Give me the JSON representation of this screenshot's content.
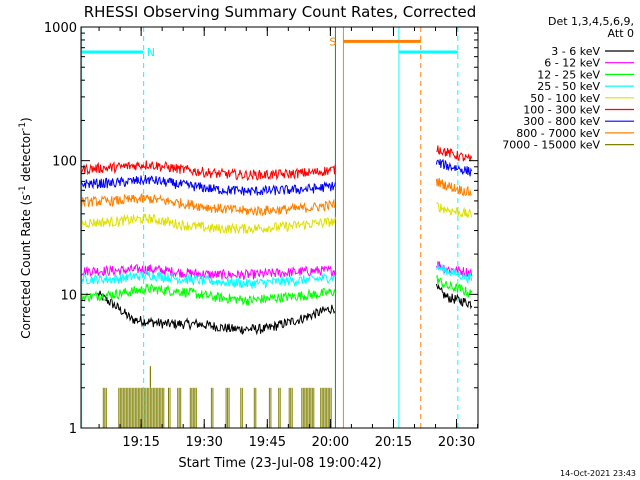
{
  "chart_data": {
    "type": "line",
    "title": "RHESSI Observing Summary Count Rates, Corrected",
    "xlabel": "Start Time (23-Jul-08 19:00:42)",
    "ylabel_parts": [
      "Corrected Count Rate (s",
      "-1",
      " detector",
      "-1",
      ")"
    ],
    "yscale": "log",
    "ylim": [
      1,
      1000
    ],
    "xlim_minutes": [
      0,
      94.4
    ],
    "y_ticks": [
      {
        "value": 1,
        "label": "1"
      },
      {
        "value": 10,
        "label": "10"
      },
      {
        "value": 100,
        "label": "100"
      },
      {
        "value": 1000,
        "label": "1000"
      }
    ],
    "x_ticks": [
      {
        "minute": 14.3,
        "label": "19:15"
      },
      {
        "minute": 29.3,
        "label": "19:30"
      },
      {
        "minute": 44.3,
        "label": "19:45"
      },
      {
        "minute": 59.3,
        "label": "20:00"
      },
      {
        "minute": 74.3,
        "label": "20:15"
      },
      {
        "minute": 89.3,
        "label": "20:30"
      }
    ],
    "legend": {
      "title_lines": [
        "Det 1,3,4,5,6,9,",
        "Att 0"
      ],
      "position": "right"
    },
    "series": [
      {
        "name": "3 - 6 keV",
        "color": "#000000",
        "segments": [
          {
            "x": [
              4,
              12,
              20,
              28,
              36,
              44,
              52,
              60.5
            ],
            "y": [
              10,
              6.5,
              6,
              6,
              5.5,
              5.5,
              6.5,
              8
            ]
          },
          {
            "x": [
              84.5,
              87,
              90,
              93
            ],
            "y": [
              11,
              9.5,
              9,
              8.5
            ]
          }
        ]
      },
      {
        "name": "6 - 12 keV",
        "color": "#ff00ff",
        "segments": [
          {
            "x": [
              0,
              8,
              16,
              24,
              32,
              40,
              48,
              56,
              60.5
            ],
            "y": [
              15,
              15,
              15.5,
              14.5,
              14,
              14,
              14.5,
              15,
              15
            ]
          },
          {
            "x": [
              84.5,
              87,
              90,
              93
            ],
            "y": [
              17,
              15.5,
              15,
              14.5
            ]
          }
        ]
      },
      {
        "name": "12 - 25 keV",
        "color": "#00ff00",
        "segments": [
          {
            "x": [
              0,
              8,
              16,
              24,
              32,
              40,
              48,
              56,
              60.5
            ],
            "y": [
              9.5,
              10,
              11,
              10.5,
              9.5,
              9,
              9.5,
              10,
              10.5
            ]
          },
          {
            "x": [
              84.5,
              87,
              90,
              93
            ],
            "y": [
              13,
              11.5,
              11,
              10
            ]
          }
        ]
      },
      {
        "name": "25 - 50 keV",
        "color": "#00ffff",
        "segments": [
          {
            "x": [
              0,
              8,
              16,
              24,
              32,
              40,
              48,
              56,
              60.5
            ],
            "y": [
              13,
              13,
              14,
              13,
              12.5,
              12,
              12.5,
              13,
              13.5
            ]
          },
          {
            "x": [
              84.5,
              87,
              90,
              93
            ],
            "y": [
              16,
              15,
              14,
              13
            ]
          }
        ]
      },
      {
        "name": "50 - 100 keV",
        "color": "#e0e000",
        "segments": [
          {
            "x": [
              0,
              8,
              16,
              24,
              32,
              40,
              48,
              56,
              60.5
            ],
            "y": [
              34,
              35,
              37,
              33,
              31,
              31,
              32,
              34,
              35
            ]
          },
          {
            "x": [
              84.5,
              87,
              90,
              93
            ],
            "y": [
              46,
              43,
              41,
              39
            ]
          }
        ]
      },
      {
        "name": "100 - 300 keV",
        "color": "#ff0000",
        "segments": [
          {
            "x": [
              0,
              8,
              16,
              24,
              32,
              40,
              48,
              56,
              60.5
            ],
            "y": [
              86,
              89,
              94,
              86,
              80,
              78,
              79,
              82,
              86
            ]
          },
          {
            "x": [
              84.5,
              87,
              90,
              93
            ],
            "y": [
              125,
              115,
              108,
              100
            ]
          }
        ]
      },
      {
        "name": "300 - 800 keV",
        "color": "#0000ff",
        "segments": [
          {
            "x": [
              0,
              8,
              16,
              24,
              32,
              40,
              48,
              56,
              60.5
            ],
            "y": [
              67,
              68,
              72,
              66,
              61,
              59,
              60,
              62,
              65
            ]
          },
          {
            "x": [
              84.5,
              87,
              90,
              93
            ],
            "y": [
              97,
              92,
              87,
              82
            ]
          }
        ]
      },
      {
        "name": "800 - 7000 keV",
        "color": "#ff8000",
        "segments": [
          {
            "x": [
              0,
              8,
              16,
              24,
              32,
              40,
              48,
              56,
              60.5
            ],
            "y": [
              49,
              50,
              52,
              48,
              44,
              42,
              43,
              45,
              47
            ]
          },
          {
            "x": [
              84.5,
              87,
              90,
              93
            ],
            "y": [
              70,
              65,
              61,
              57
            ]
          }
        ]
      },
      {
        "name": "7000 - 15000 keV",
        "color": "#808000",
        "segments": []
      }
    ],
    "vertical_markers": [
      {
        "minute": 0.15,
        "color": "#00ffff",
        "style": "solid"
      },
      {
        "minute": 14.9,
        "color": "#00ffff",
        "style": "dashed"
      },
      {
        "minute": 60.5,
        "color": "#00a000",
        "style": "solid"
      },
      {
        "minute": 62.4,
        "color": "#ff8000",
        "style": "solid"
      },
      {
        "minute": 75.6,
        "color": "#00ffff",
        "style": "solid"
      },
      {
        "minute": 80.8,
        "color": "#ff8000",
        "style": "dashed"
      },
      {
        "minute": 89.6,
        "color": "#00ffff",
        "style": "dashed"
      }
    ],
    "flag_bars": [
      {
        "x": [
          0.15,
          14.9
        ],
        "y": 650,
        "color": "#00ffff"
      },
      {
        "x": [
          62.4,
          80.8
        ],
        "y": 780,
        "color": "#ff8000"
      },
      {
        "x": [
          75.6,
          89.6
        ],
        "y": 650,
        "color": "#00ffff"
      }
    ],
    "flag_labels": [
      {
        "text": "N",
        "minute": 16.6,
        "y": 650,
        "color": "#00ffff"
      },
      {
        "text": "S",
        "minute": 59.9,
        "y": 780,
        "color": "#ff8000"
      }
    ],
    "high_energy_flags": {
      "color": "#808000",
      "level": 2,
      "spike_minute": 16.5,
      "spike_level": 2.9,
      "ranges": [
        [
          5.3,
          6.2
        ],
        [
          9,
          20
        ],
        [
          20.8,
          21.3
        ],
        [
          23,
          24
        ],
        [
          26,
          27.5
        ],
        [
          31,
          31.6
        ],
        [
          34.5,
          35.3
        ],
        [
          38,
          38.4
        ],
        [
          41.2,
          41.8
        ],
        [
          44.8,
          45.2
        ],
        [
          47,
          47.5
        ],
        [
          49.5,
          50.5
        ],
        [
          52.5,
          55.5
        ],
        [
          57,
          59.5
        ]
      ]
    },
    "grid": false,
    "footer_date": "14-Oct-2021 23:43"
  }
}
